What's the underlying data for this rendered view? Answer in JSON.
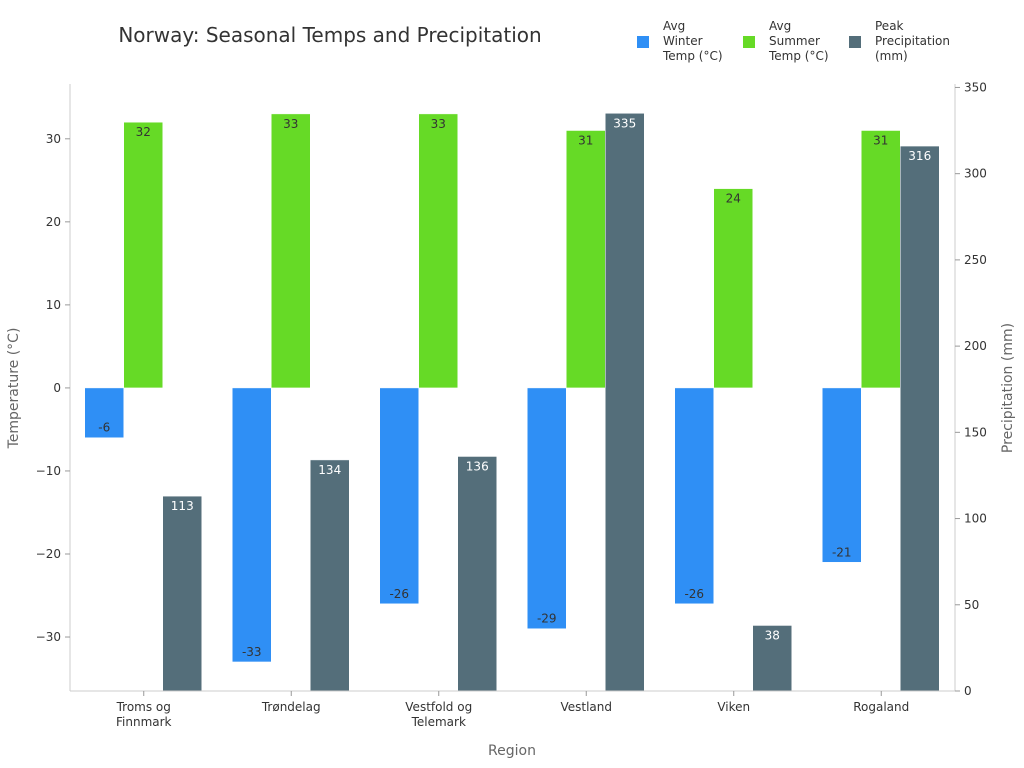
{
  "chart_data": {
    "type": "bar",
    "title": "Norway: Seasonal Temps and Precipitation",
    "xlabel": "Region",
    "ylabel": "Temperature (°C)",
    "y2label": "Precipitation (mm)",
    "categories": [
      [
        "Troms og",
        "Finnmark"
      ],
      [
        "Trøndelag"
      ],
      [
        "Vestfold og",
        "Telemark"
      ],
      [
        "Vestland"
      ],
      [
        "Viken"
      ],
      [
        "Rogaland"
      ]
    ],
    "ylim": [
      -36.5,
      36.6
    ],
    "y2lim": [
      0,
      352
    ],
    "yticks": [
      -30,
      -20,
      -10,
      0,
      10,
      20,
      30
    ],
    "ytick_labels": [
      "−30",
      "−20",
      "−10",
      "0",
      "10",
      "20",
      "30"
    ],
    "y2ticks": [
      0,
      50,
      100,
      150,
      200,
      250,
      300,
      350
    ],
    "y2tick_labels": [
      "0",
      "50",
      "100",
      "150",
      "200",
      "250",
      "300",
      "350"
    ],
    "legend_position": "top-right",
    "series": [
      {
        "name": "Avg Winter Temp (°C)",
        "legend_lines": [
          "Avg",
          "Winter",
          "Temp (°C)"
        ],
        "axis": "left",
        "color": "#2f8ff5",
        "label_color": "#333333",
        "values": [
          -6,
          -33,
          -26,
          -29,
          -26,
          -21
        ]
      },
      {
        "name": "Avg Summer Temp (°C)",
        "legend_lines": [
          "Avg",
          "Summer",
          "Temp (°C)"
        ],
        "axis": "left",
        "color": "#66da26",
        "label_color": "#333333",
        "values": [
          32,
          33,
          33,
          31,
          24,
          31
        ]
      },
      {
        "name": "Peak Precipitation (mm)",
        "legend_lines": [
          "Peak",
          "Precipitation",
          "(mm)"
        ],
        "axis": "right",
        "color": "#546e7a",
        "label_color": "#ffffff",
        "values": [
          113,
          134,
          136,
          335,
          38,
          316
        ]
      }
    ]
  }
}
